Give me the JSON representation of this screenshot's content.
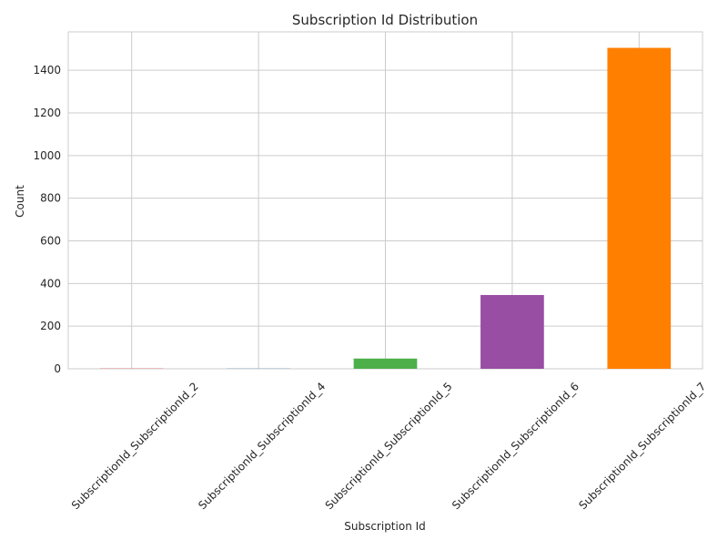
{
  "chart_data": {
    "type": "bar",
    "title": "Subscription Id Distribution",
    "xlabel": "Subscription Id",
    "ylabel": "Count",
    "categories": [
      "SubscriptionId_SubscriptionId_2",
      "SubscriptionId_SubscriptionId_4",
      "SubscriptionId_SubscriptionId_5",
      "SubscriptionId_SubscriptionId_6",
      "SubscriptionId_SubscriptionId_7"
    ],
    "values": [
      1,
      1,
      48,
      346,
      1505
    ],
    "colors": [
      "#e41a1c",
      "#377eb8",
      "#4daf4a",
      "#984ea3",
      "#ff7f00"
    ],
    "ylim": [
      0,
      1580
    ],
    "yticks": [
      0,
      200,
      400,
      600,
      800,
      1000,
      1200,
      1400
    ],
    "grid": true,
    "grid_color": "#cccccc",
    "legend": "none"
  }
}
